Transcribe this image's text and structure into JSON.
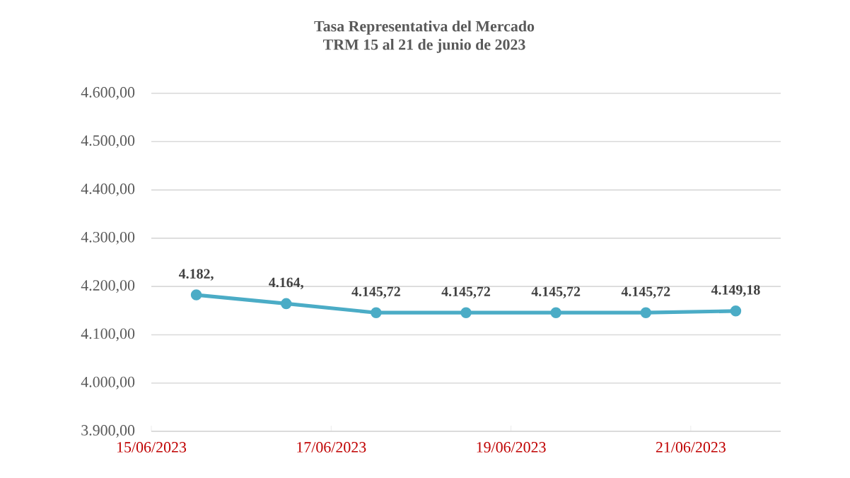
{
  "chart_data": {
    "type": "line",
    "title": "Tasa Representativa del Mercado",
    "subtitle": "TRM  15 al 21 de junio de 2023",
    "x": [
      "2023-06-15T12:00",
      "2023-06-16T12:00",
      "2023-06-17T12:00",
      "2023-06-18T12:00",
      "2023-06-19T12:00",
      "2023-06-20T12:00",
      "2023-06-21T12:00"
    ],
    "values": [
      4182.5,
      4164.5,
      4145.72,
      4145.72,
      4145.72,
      4145.72,
      4149.18
    ],
    "value_labels": [
      "4.182,",
      "4.164,",
      "4.145,72",
      "4.145,72",
      "4.145,72",
      "4.145,72",
      "4.149,18"
    ],
    "color": "#4bacc6",
    "marker": "circle",
    "line_style": "solid",
    "grid": "y",
    "xlim": [
      "2023-06-15",
      "2023-06-22"
    ],
    "xticks": [
      {
        "value": "2023-06-15",
        "label": "15/06/2023"
      },
      {
        "value": "2023-06-17",
        "label": "17/06/2023"
      },
      {
        "value": "2023-06-19",
        "label": "19/06/2023"
      },
      {
        "value": "2023-06-21",
        "label": "21/06/2023"
      }
    ],
    "ylim": [
      3900,
      4600
    ],
    "yticks": [
      {
        "value": 3900,
        "label": "3.900,00"
      },
      {
        "value": 4000,
        "label": "4.000,00"
      },
      {
        "value": 4100,
        "label": "4.100,00"
      },
      {
        "value": 4200,
        "label": "4.200,00"
      },
      {
        "value": 4300,
        "label": "4.300,00"
      },
      {
        "value": 4400,
        "label": "4.400,00"
      },
      {
        "value": 4500,
        "label": "4.500,00"
      },
      {
        "value": 4600,
        "label": "4.600,00"
      }
    ]
  }
}
